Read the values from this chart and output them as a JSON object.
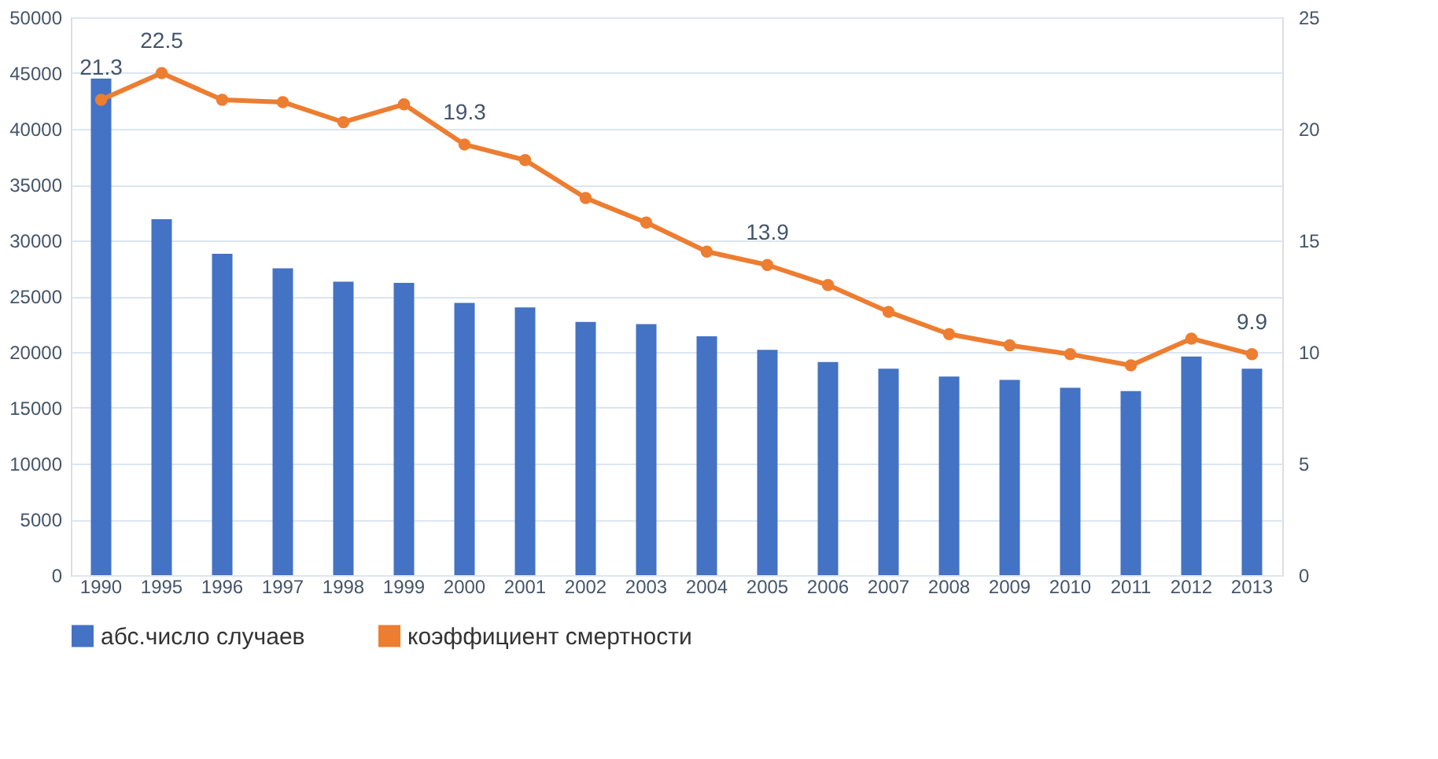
{
  "chart_data": {
    "type": "bar",
    "categories": [
      "1990",
      "1995",
      "1996",
      "1997",
      "1998",
      "1999",
      "2000",
      "2001",
      "2002",
      "2003",
      "2004",
      "2005",
      "2006",
      "2007",
      "2008",
      "2009",
      "2010",
      "2011",
      "2012",
      "2013"
    ],
    "series": [
      {
        "name": "абс.число случаев",
        "color": "#4472c4",
        "values": [
          44500,
          31900,
          28800,
          27500,
          26300,
          26200,
          24400,
          24000,
          22700,
          22500,
          21400,
          20200,
          19100,
          18500,
          17800,
          17500,
          16800,
          16500,
          19600,
          18500
        ]
      },
      {
        "name": "коэффициент смертности",
        "type": "line",
        "axis": "y2",
        "color": "#ed7d31",
        "marker": "circle",
        "line_style": "solid",
        "values": [
          21.3,
          22.5,
          21.3,
          21.2,
          20.3,
          21.1,
          19.3,
          18.6,
          16.9,
          15.8,
          14.5,
          13.9,
          13.0,
          11.8,
          10.8,
          10.3,
          9.9,
          9.4,
          10.6,
          9.9
        ],
        "value_labels": [
          "21.3",
          "22.5",
          null,
          null,
          null,
          null,
          "19.3",
          null,
          null,
          null,
          null,
          "13.9",
          null,
          null,
          null,
          null,
          null,
          null,
          null,
          "9.9"
        ]
      }
    ],
    "ylim": [
      0,
      50000
    ],
    "yticks": [
      0,
      5000,
      10000,
      15000,
      20000,
      25000,
      30000,
      35000,
      40000,
      45000,
      50000
    ],
    "y2lim": [
      0,
      25
    ],
    "y2ticks": [
      0,
      5,
      10,
      15,
      20,
      25
    ],
    "grid": "y",
    "legend": "bottom"
  }
}
